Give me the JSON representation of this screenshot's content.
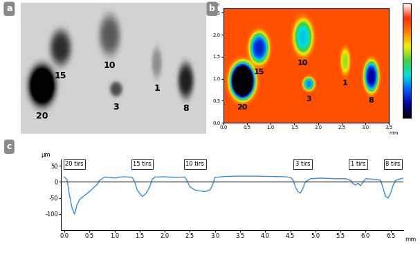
{
  "chart_data": [
    {
      "panel": "a",
      "type": "image",
      "surface": 10,
      "colorbar_range": [
        -60,
        25
      ],
      "craters": [
        {
          "label": "20",
          "x": 0.4,
          "y": 0.95,
          "rx": 0.25,
          "ry": 0.4,
          "depth": -100
        },
        {
          "label": "15",
          "x": 0.75,
          "y": 1.7,
          "rx": 0.2,
          "ry": 0.35,
          "depth": -45
        },
        {
          "label": "10",
          "x": 1.68,
          "y": 1.95,
          "rx": 0.2,
          "ry": 0.4,
          "depth": -30
        },
        {
          "label": "3",
          "x": 1.8,
          "y": 0.88,
          "rx": 0.12,
          "ry": 0.15,
          "depth": -35
        },
        {
          "label": "1",
          "x": 2.57,
          "y": 1.4,
          "rx": 0.1,
          "ry": 0.3,
          "depth": -12
        },
        {
          "label": "8",
          "x": 3.12,
          "y": 1.05,
          "rx": 0.15,
          "ry": 0.35,
          "depth": -50
        }
      ]
    },
    {
      "panel": "b",
      "type": "heatmap",
      "surface": 10,
      "colorbar_range": [
        -60,
        25
      ],
      "colorbar_ticks": [],
      "xlim": [
        0.0,
        3.5
      ],
      "ylim": [
        0.0,
        2.6
      ],
      "xticks": [
        {
          "value": 0.0,
          "label": "0.0"
        },
        {
          "value": 0.5,
          "label": "0.5"
        },
        {
          "value": 1.0,
          "label": "1.0"
        },
        {
          "value": 1.5,
          "label": "1.5"
        },
        {
          "value": 2.0,
          "label": "2.0"
        },
        {
          "value": 2.5,
          "label": "2.5"
        },
        {
          "value": 3.0,
          "label": "3.0"
        },
        {
          "value": 3.5,
          "label": "3.5"
        }
      ],
      "yticks": [
        {
          "value": 0.0,
          "label": "0.0"
        },
        {
          "value": 0.5,
          "label": "0.5"
        },
        {
          "value": 1.0,
          "label": "1.0"
        },
        {
          "value": 1.5,
          "label": "1.5"
        },
        {
          "value": 2.0,
          "label": "2.0"
        },
        {
          "value": 2.5,
          "label": "2.5"
        }
      ],
      "x_label": "mm",
      "y_label": "mm",
      "craters": [
        {
          "label": "20",
          "x": 0.4,
          "y": 0.95,
          "rx": 0.25,
          "ry": 0.4,
          "depth": -100
        },
        {
          "label": "15",
          "x": 0.75,
          "y": 1.7,
          "rx": 0.2,
          "ry": 0.35,
          "depth": -45
        },
        {
          "label": "10",
          "x": 1.68,
          "y": 1.95,
          "rx": 0.2,
          "ry": 0.4,
          "depth": -30
        },
        {
          "label": "3",
          "x": 1.8,
          "y": 0.88,
          "rx": 0.12,
          "ry": 0.15,
          "depth": -35
        },
        {
          "label": "1",
          "x": 2.57,
          "y": 1.4,
          "rx": 0.1,
          "ry": 0.3,
          "depth": -12
        },
        {
          "label": "8",
          "x": 3.12,
          "y": 1.05,
          "rx": 0.15,
          "ry": 0.35,
          "depth": -50
        }
      ]
    },
    {
      "panel": "c",
      "type": "line",
      "color": "#2f8fd8",
      "x_label": "mm",
      "y_label": "µm",
      "xlim": [
        -0.07,
        6.75
      ],
      "ylim": [
        -150,
        70
      ],
      "xticks": [
        {
          "value": 0.0,
          "label": "0.0"
        },
        {
          "value": 0.5,
          "label": "0.5"
        },
        {
          "value": 1.0,
          "label": "1.0"
        },
        {
          "value": 1.5,
          "label": "1.5"
        },
        {
          "value": 2.0,
          "label": "2.0"
        },
        {
          "value": 2.5,
          "label": "2.5"
        },
        {
          "value": 3.0,
          "label": "3.0"
        },
        {
          "value": 3.5,
          "label": "3.5"
        },
        {
          "value": 4.0,
          "label": "4.0"
        },
        {
          "value": 4.5,
          "label": "4.5"
        },
        {
          "value": 5.0,
          "label": "5.0"
        },
        {
          "value": 5.5,
          "label": "5.5"
        },
        {
          "value": 6.0,
          "label": "6.0"
        },
        {
          "value": 6.5,
          "label": "6.5"
        }
      ],
      "yticks": [
        50,
        0,
        -50,
        -100
      ],
      "x": [
        0.0,
        0.05,
        0.1,
        0.15,
        0.2,
        0.25,
        0.3,
        0.4,
        0.5,
        0.6,
        0.65,
        0.7,
        0.8,
        0.9,
        1.0,
        1.1,
        1.2,
        1.3,
        1.35,
        1.4,
        1.45,
        1.5,
        1.55,
        1.6,
        1.65,
        1.7,
        1.75,
        1.8,
        2.0,
        2.2,
        2.4,
        2.45,
        2.5,
        2.6,
        2.7,
        2.8,
        2.9,
        2.95,
        3.0,
        3.2,
        3.5,
        3.8,
        4.1,
        4.4,
        4.5,
        4.55,
        4.6,
        4.65,
        4.7,
        4.75,
        4.8,
        4.9,
        5.1,
        5.4,
        5.6,
        5.7,
        5.75,
        5.8,
        5.85,
        5.9,
        5.95,
        6.0,
        6.2,
        6.3,
        6.35,
        6.4,
        6.45,
        6.5,
        6.55,
        6.6,
        6.7,
        6.75
      ],
      "values": [
        15,
        8,
        -40,
        -80,
        -100,
        -72,
        -55,
        -42,
        -30,
        -15,
        -8,
        5,
        15,
        14,
        12,
        15,
        16,
        15,
        14,
        0,
        -25,
        -35,
        -45,
        -40,
        -30,
        -15,
        8,
        15,
        16,
        14,
        15,
        2,
        -15,
        -25,
        -28,
        -30,
        -25,
        -10,
        14,
        17,
        18,
        18,
        17,
        16,
        14,
        8,
        -15,
        -30,
        -35,
        -20,
        0,
        10,
        12,
        10,
        10,
        5,
        -5,
        -10,
        -4,
        -12,
        0,
        10,
        8,
        5,
        -20,
        -45,
        -50,
        -35,
        -10,
        5,
        10,
        12
      ],
      "annotations": [
        {
          "text": "20 tirs",
          "x": 0.2,
          "y": 55
        },
        {
          "text": "15 tirs",
          "x": 1.55,
          "y": 55
        },
        {
          "text": "10 tirs",
          "x": 2.6,
          "y": 55
        },
        {
          "text": "3 tirs",
          "x": 4.75,
          "y": 55
        },
        {
          "text": "1 tirs",
          "x": 5.85,
          "y": 55
        },
        {
          "text": "8 tirs",
          "x": 6.55,
          "y": 55
        }
      ]
    }
  ]
}
